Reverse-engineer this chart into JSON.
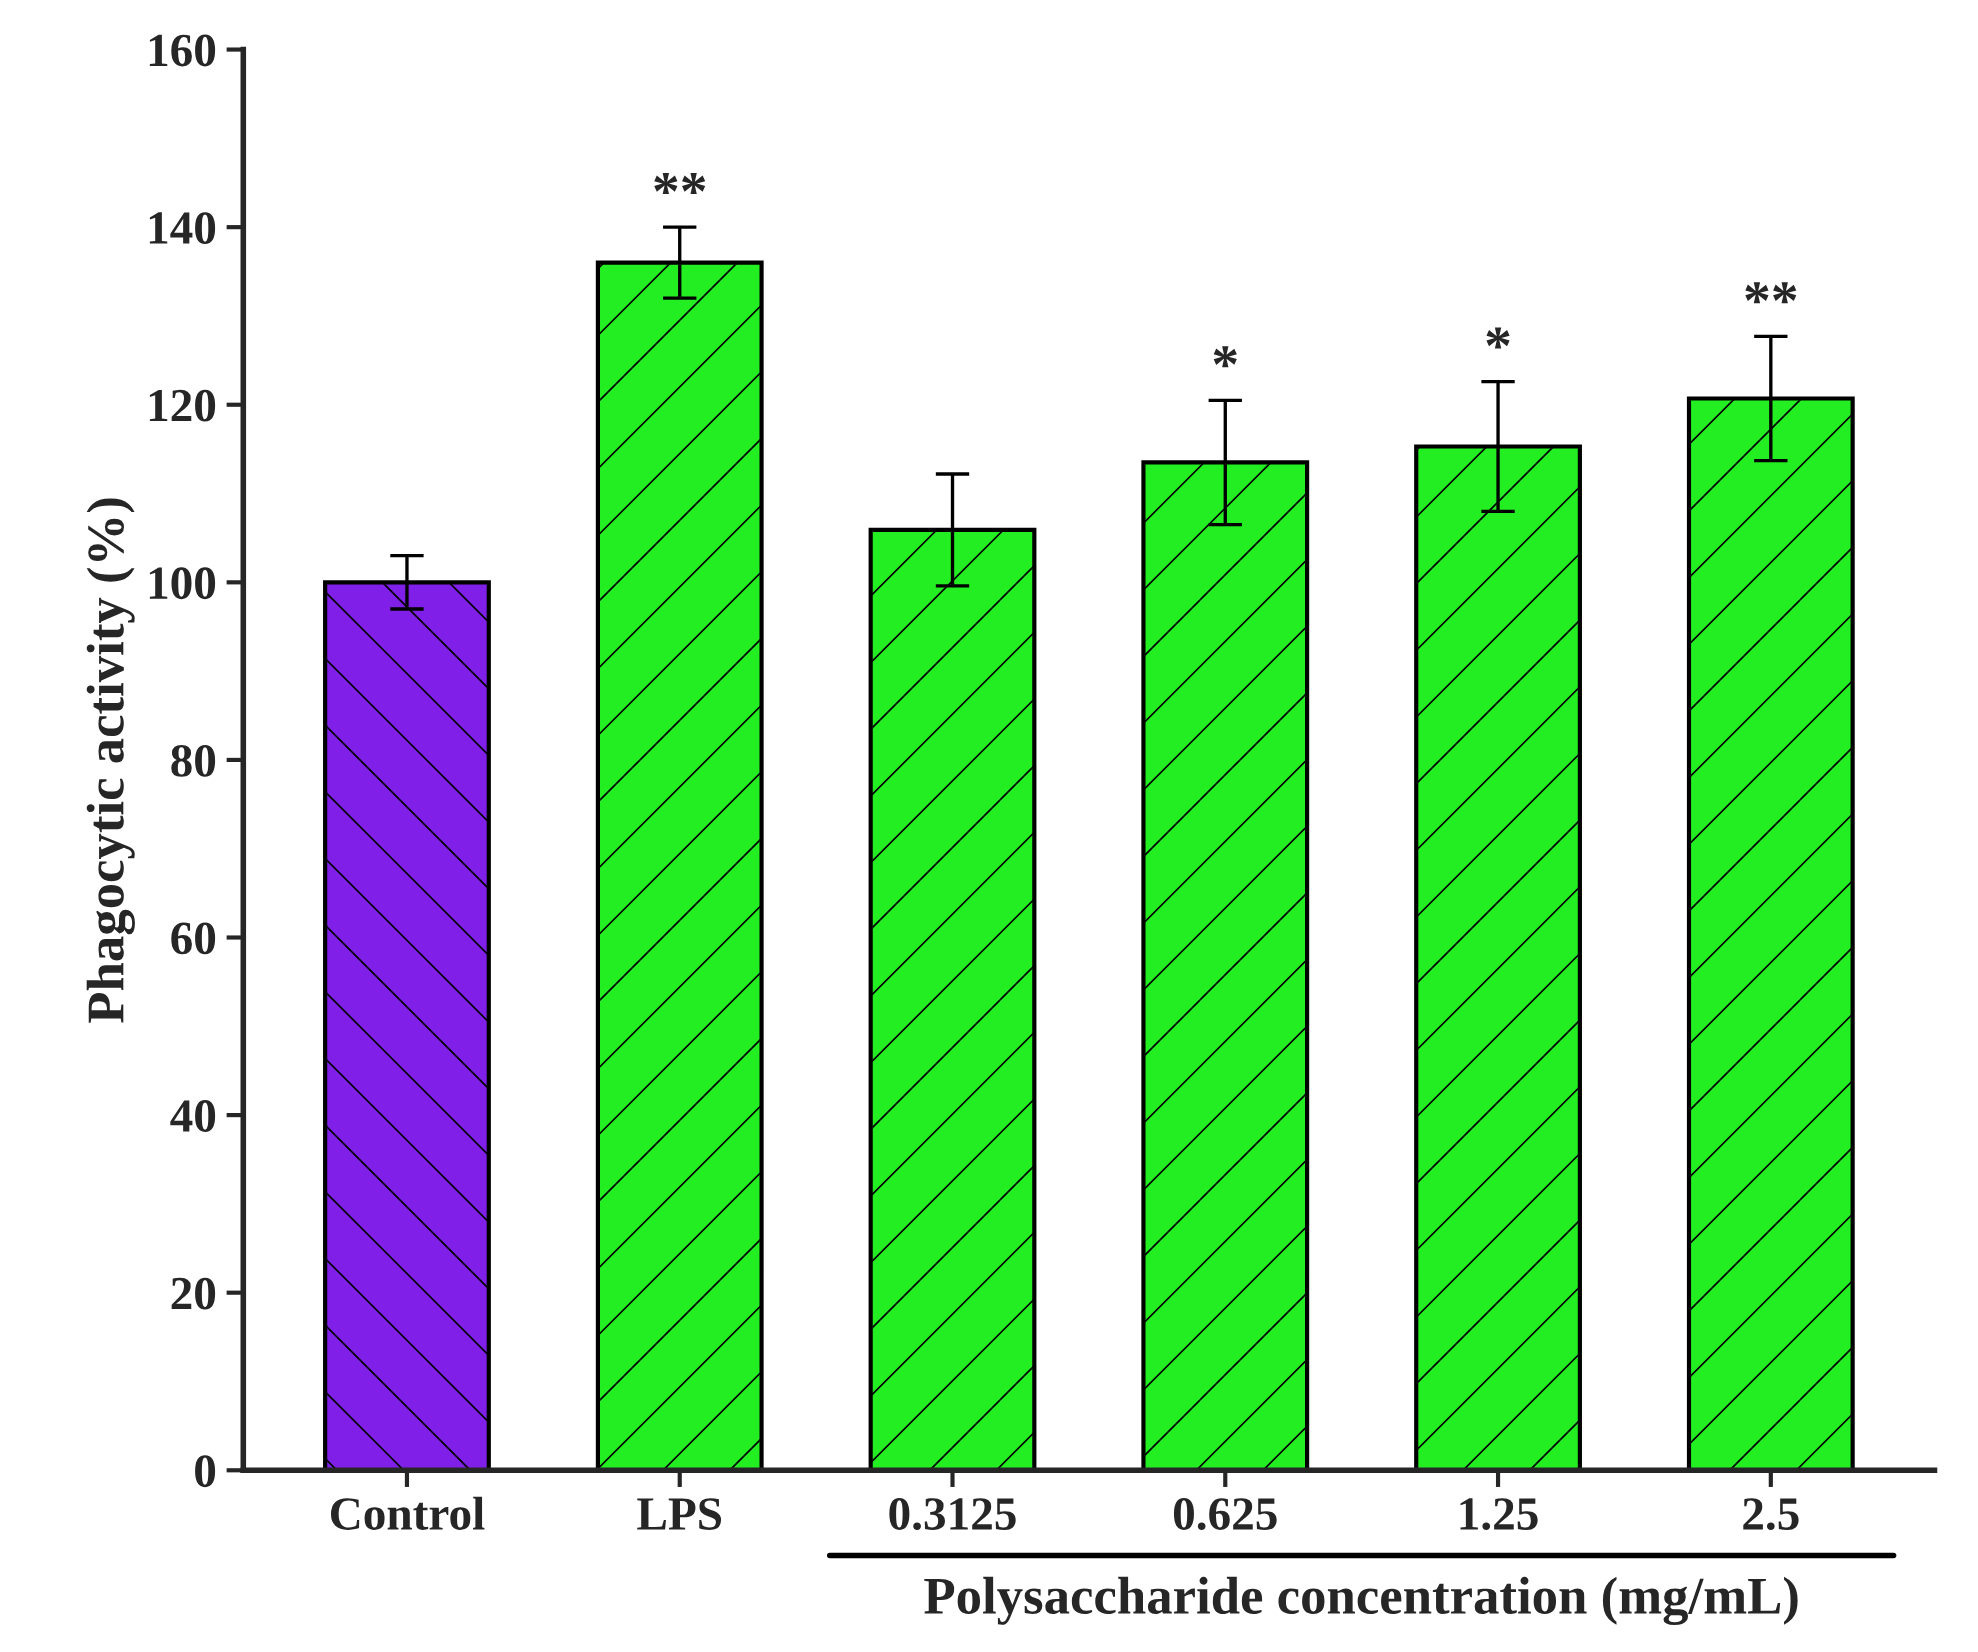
{
  "chart_data": {
    "type": "bar",
    "categories": [
      "Control",
      "LPS",
      "0.3125",
      "0.625",
      "1.25",
      "2.5"
    ],
    "values": [
      100,
      136,
      105.9,
      113.5,
      115.3,
      120.7
    ],
    "errors": [
      3,
      4,
      6.3,
      7,
      7.3,
      7
    ],
    "colors": [
      "#7f1fe8",
      "#22ee22",
      "#22ee22",
      "#22ee22",
      "#22ee22",
      "#22ee22"
    ],
    "ylabel": "Phagocytic activity (%)",
    "xlabel": "Polysaccharide concentration (mg/mL)",
    "ylim": [
      0,
      160
    ],
    "yticks": [
      0,
      20,
      40,
      60,
      80,
      100,
      120,
      140,
      160
    ],
    "grid": false,
    "legend": false,
    "annotations": [
      {
        "text": "**",
        "x": "LPS",
        "y": 140
      },
      {
        "text": "*",
        "x": "0.625",
        "y": 120.5
      },
      {
        "text": "*",
        "x": "1.25",
        "y": 122.6
      },
      {
        "text": "**",
        "x": "2.5",
        "y": 127.7
      }
    ]
  }
}
